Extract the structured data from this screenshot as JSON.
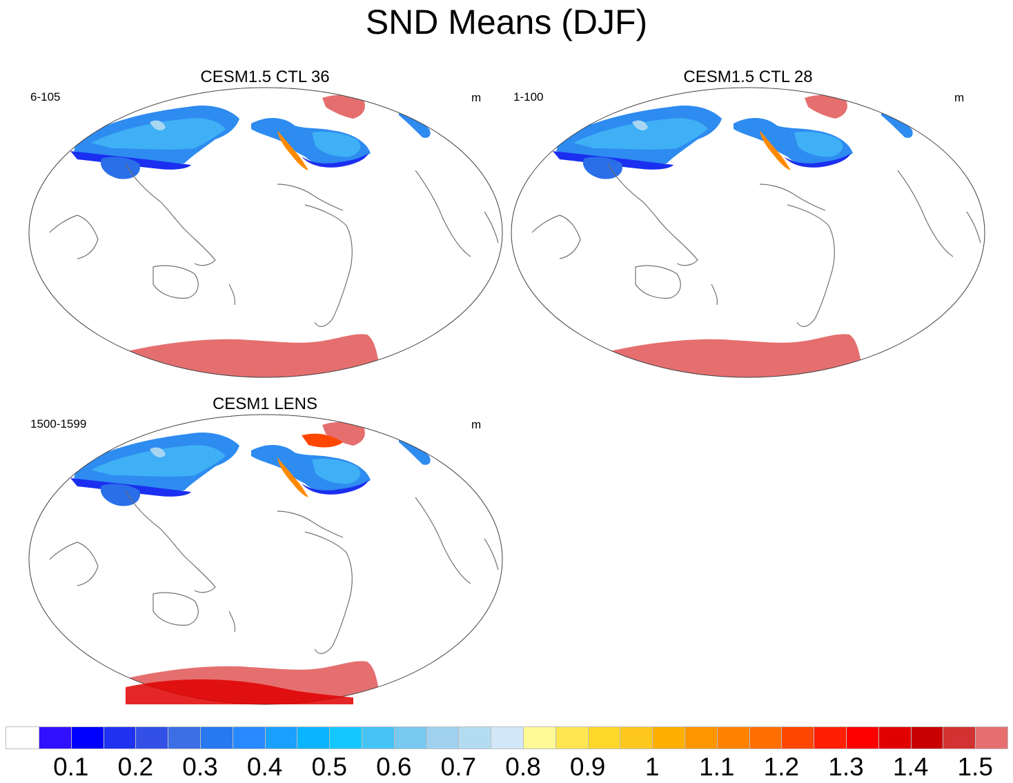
{
  "title": "SND Means (DJF)",
  "units": "m",
  "colors": {
    "ocean": "#ffffff",
    "coastline": "#707070",
    "icesheet": "#e56f6f",
    "icesheet_deep": "#e10000"
  },
  "panels": [
    {
      "title": "CESM1.5 CTL 36",
      "years": "6-105",
      "units": "m"
    },
    {
      "title": "CESM1.5 CTL 28",
      "years": "1-100",
      "units": "m"
    },
    {
      "title": "CESM1 LENS",
      "years": "1500-1599",
      "units": "m"
    }
  ],
  "colorbar": {
    "labels": [
      "0.1",
      "0.2",
      "0.3",
      "0.4",
      "0.5",
      "0.6",
      "0.7",
      "0.8",
      "0.9",
      "1",
      "1.1",
      "1.2",
      "1.3",
      "1.4",
      "1.5"
    ],
    "colors": [
      "#ffffff",
      "#3010ff",
      "#0000ff",
      "#1e32f0",
      "#3250e6",
      "#3c6ee6",
      "#2878f0",
      "#2888ff",
      "#1aa0ff",
      "#0ab4ff",
      "#14c8ff",
      "#46c3f5",
      "#78c8f0",
      "#a0d2f0",
      "#b4dcf0",
      "#d2e8f8",
      "#fffa96",
      "#ffe650",
      "#ffd728",
      "#ffc81e",
      "#ffaf00",
      "#ff9600",
      "#ff8200",
      "#ff6e00",
      "#ff4600",
      "#ff1e00",
      "#ff0000",
      "#e10000",
      "#c80000",
      "#d23232",
      "#e56f6f"
    ]
  }
}
